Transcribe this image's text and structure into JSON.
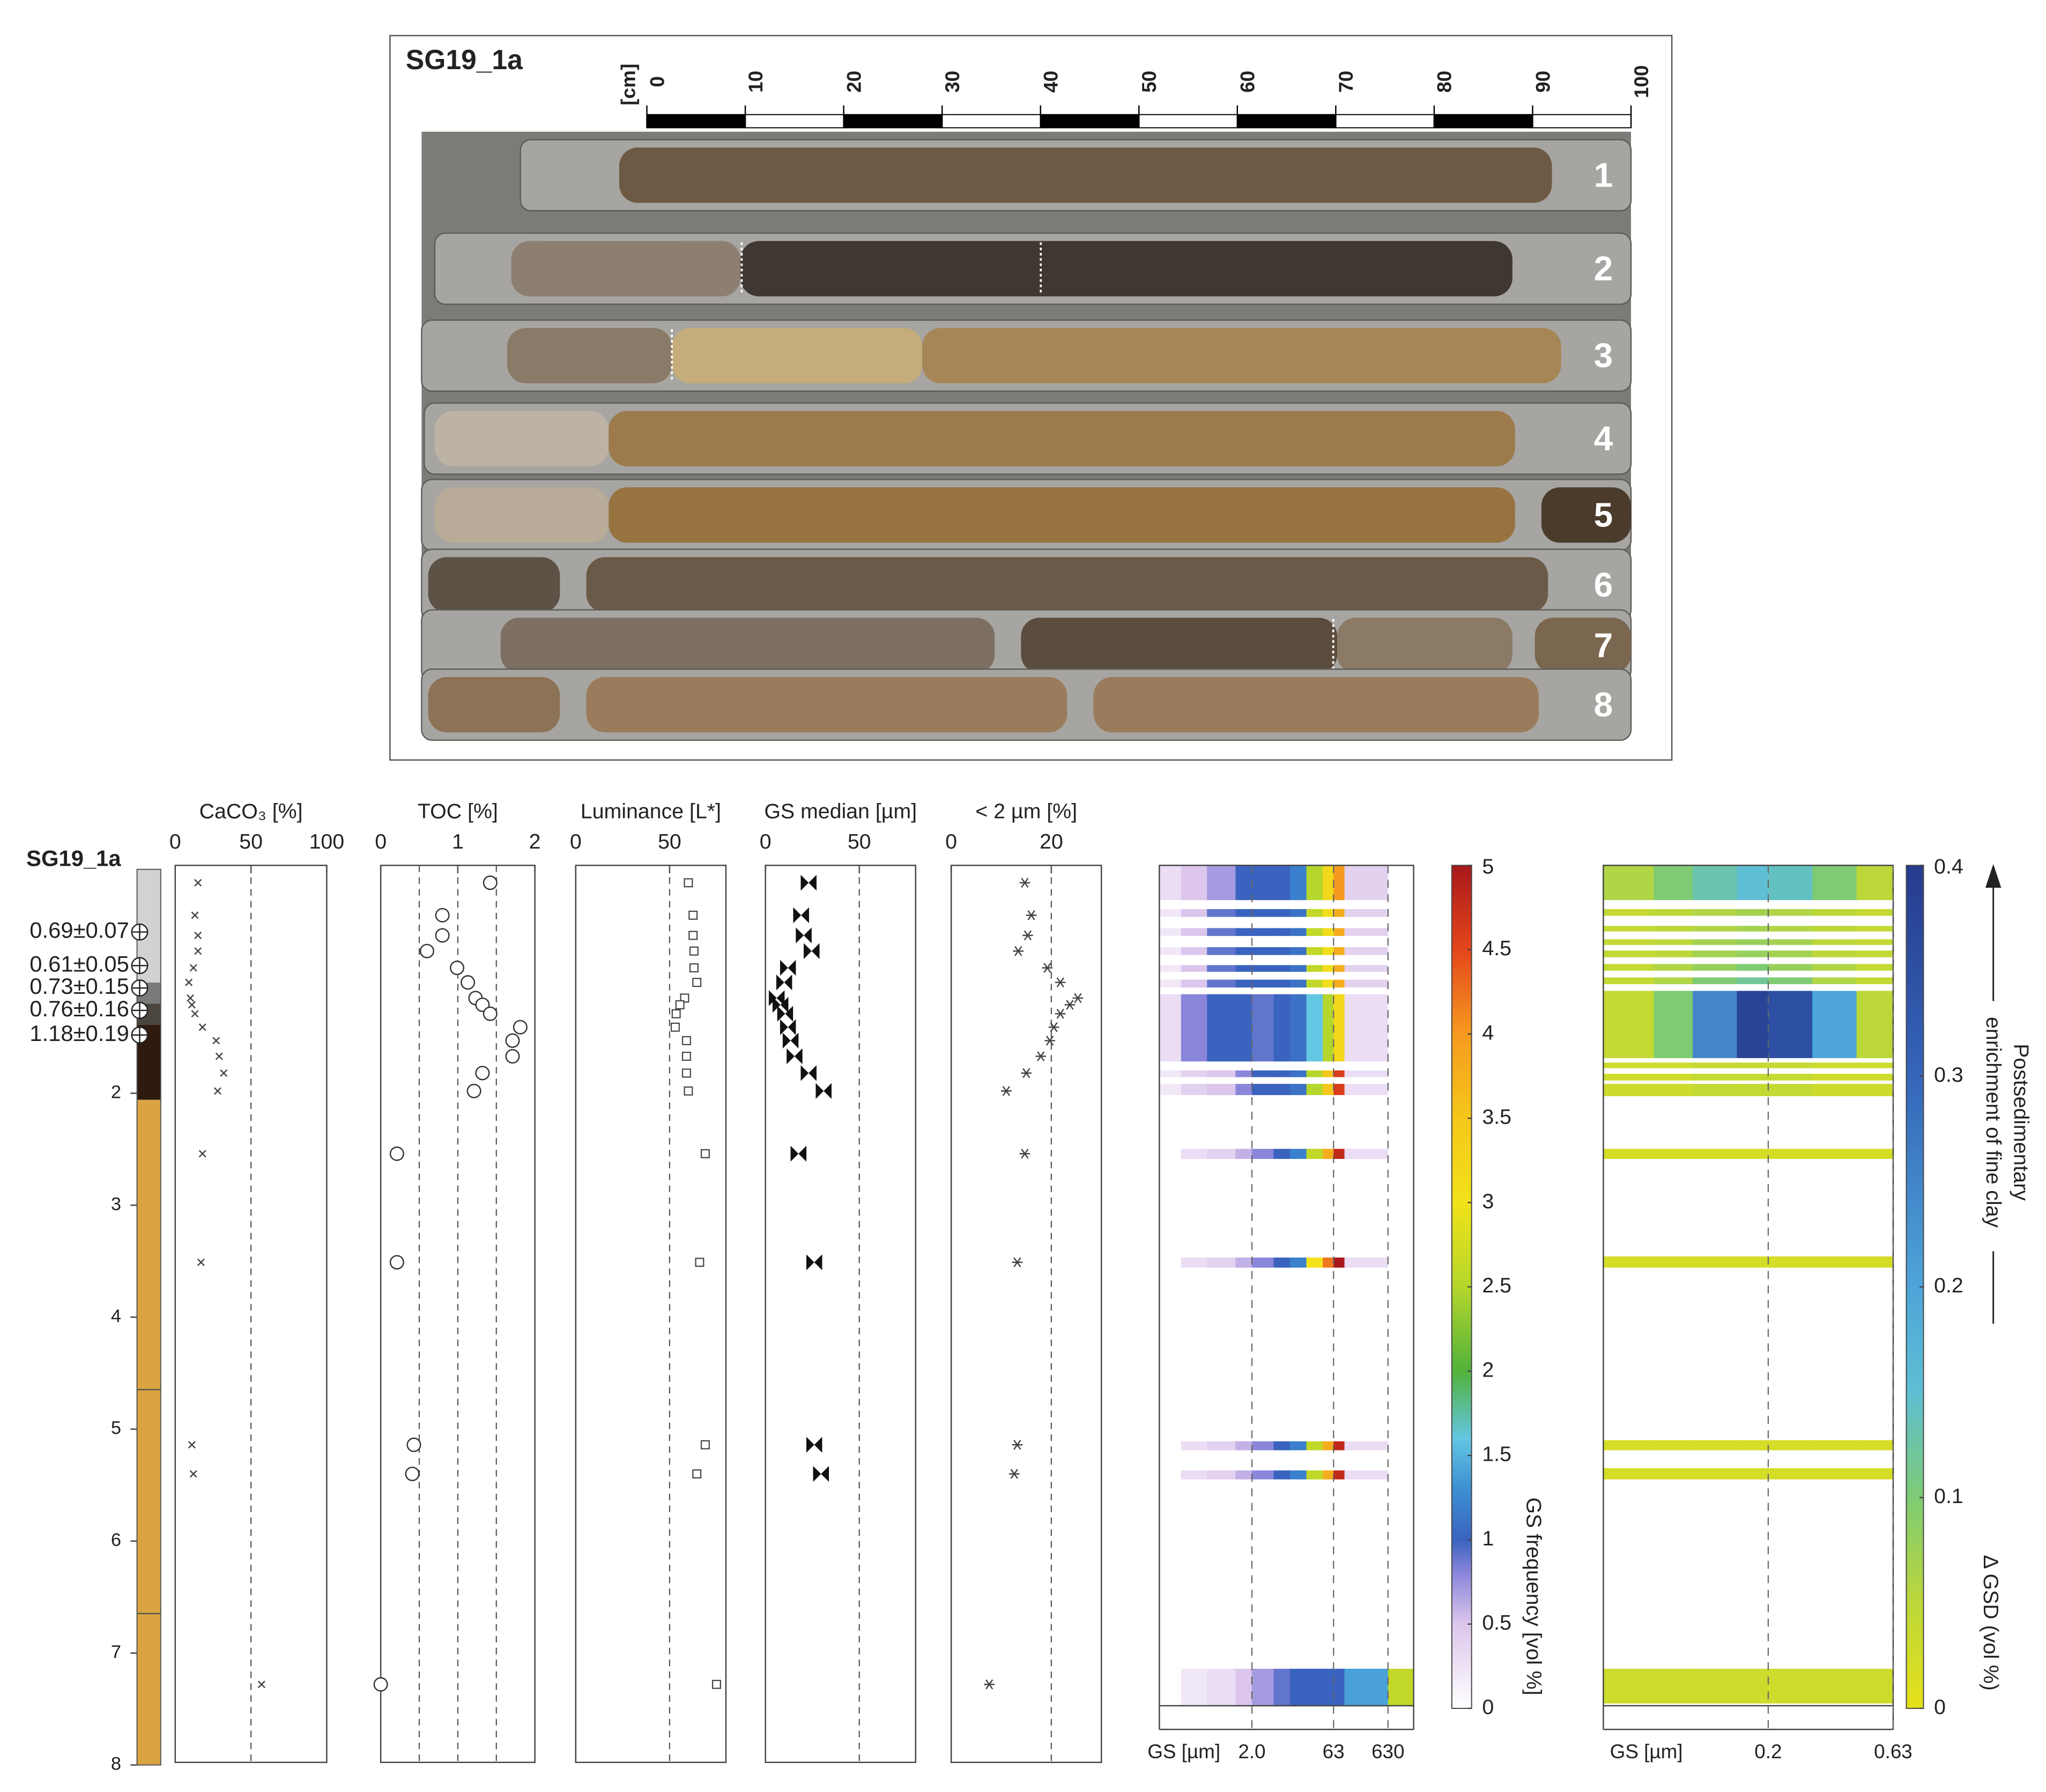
{
  "photo": {
    "title": "SG19_1a",
    "scale_unit": "[cm]",
    "scale_lim": [
      0,
      100
    ],
    "scale_ticks": [
      0,
      10,
      20,
      30,
      40,
      50,
      60,
      70,
      80,
      90,
      100
    ],
    "cores": [
      "1",
      "2",
      "3",
      "4",
      "5",
      "6",
      "7",
      "8"
    ]
  },
  "chart_data": [
    {
      "type": "log",
      "title": "SG19_1a",
      "ylim": [
        8,
        0
      ],
      "yticks": [
        2,
        3,
        4,
        5,
        6,
        7,
        8
      ],
      "ages": [
        "0.69±0.07",
        "0.61±0.05",
        "0.73±0.15",
        "0.76±0.16",
        "1.18±0.19"
      ],
      "age_depths": [
        0.56,
        0.86,
        1.06,
        1.26,
        1.48
      ]
    },
    {
      "type": "scatter",
      "xlabel": "CaCO₃ [%]",
      "marker": "cross",
      "xlim": [
        0,
        100
      ],
      "xticks": [
        0,
        50,
        100
      ],
      "guides": [
        50
      ],
      "ylim": [
        8,
        0
      ],
      "y": [
        0.12,
        0.41,
        0.59,
        0.73,
        0.88,
        1.01,
        1.15,
        1.21,
        1.29,
        1.41,
        1.53,
        1.67,
        1.82,
        1.98,
        2.54,
        3.51,
        5.14,
        5.4,
        7.28
      ],
      "x": [
        15,
        13,
        15,
        15,
        12,
        9,
        10,
        11,
        13,
        18,
        27,
        29,
        32,
        28,
        18,
        17,
        11,
        12,
        57
      ]
    },
    {
      "type": "scatter",
      "xlabel": "TOC [%]",
      "marker": "circle",
      "xlim": [
        0,
        2
      ],
      "xticks": [
        0,
        1,
        2
      ],
      "guides": [
        0.5,
        1,
        1.5
      ],
      "ylim": [
        8,
        0
      ],
      "y": [
        0.12,
        0.41,
        0.59,
        0.73,
        0.88,
        1.01,
        1.15,
        1.21,
        1.29,
        1.41,
        1.53,
        1.67,
        1.82,
        1.98,
        2.54,
        3.51,
        5.14,
        5.4,
        7.28
      ],
      "x": [
        1.42,
        0.8,
        0.8,
        0.6,
        0.99,
        1.13,
        1.23,
        1.32,
        1.42,
        1.81,
        1.71,
        1.71,
        1.32,
        1.21,
        0.21,
        0.21,
        0.43,
        0.41,
        0
      ]
    },
    {
      "type": "scatter",
      "xlabel": "Luminance [L*]",
      "marker": "square",
      "xlim": [
        0,
        80
      ],
      "xticks": [
        0,
        50
      ],
      "guides": [
        50
      ],
      "ylim": [
        8,
        0
      ],
      "y": [
        0.12,
        0.41,
        0.59,
        0.73,
        0.88,
        1.01,
        1.15,
        1.21,
        1.29,
        1.41,
        1.53,
        1.67,
        1.82,
        1.98,
        2.54,
        3.51,
        5.14,
        5.4,
        7.28
      ],
      "x": [
        60,
        62.5,
        62.5,
        63,
        63,
        64.5,
        58,
        55.5,
        53.5,
        53,
        59,
        59,
        59,
        60,
        69,
        66,
        69,
        64.5,
        75
      ]
    },
    {
      "type": "scatter",
      "xlabel": "GS median [µm]",
      "marker": "bowtie",
      "xlim": [
        0,
        80
      ],
      "xticks": [
        0,
        50
      ],
      "guides": [
        50
      ],
      "ylim": [
        8,
        0
      ],
      "y": [
        0.12,
        0.41,
        0.59,
        0.73,
        0.88,
        1.01,
        1.15,
        1.21,
        1.29,
        1.41,
        1.53,
        1.67,
        1.82,
        1.98,
        2.54,
        3.51,
        5.14,
        5.4
      ],
      "x": [
        23,
        19,
        20.4,
        24.6,
        12,
        10,
        6,
        8,
        10.5,
        12,
        13.4,
        15.5,
        23,
        31,
        17.6,
        26,
        26,
        29.6
      ]
    },
    {
      "type": "scatter",
      "xlabel": "< 2 µm [%]",
      "marker": "asterisk",
      "xlim": [
        0,
        30
      ],
      "xticks": [
        0,
        20
      ],
      "guides": [
        20
      ],
      "ylim": [
        8,
        0
      ],
      "y": [
        0.12,
        0.41,
        0.59,
        0.73,
        0.88,
        1.01,
        1.15,
        1.21,
        1.29,
        1.41,
        1.53,
        1.67,
        1.82,
        1.98,
        2.54,
        3.51,
        5.14,
        5.4,
        7.28
      ],
      "x": [
        14.7,
        16,
        15.3,
        13.4,
        19.2,
        21.8,
        25.3,
        23.7,
        21.8,
        20.5,
        19.7,
        17.9,
        15,
        11,
        14.7,
        13.2,
        13.2,
        12.6,
        7.6
      ]
    },
    {
      "type": "heatmap",
      "xlabel": "GS [µm]",
      "xlog": true,
      "xlim": [
        0.04,
        1860
      ],
      "xticks": [
        {
          "value": 2,
          "label": "2.0"
        },
        63,
        630
      ],
      "grid": true,
      "ylim": [
        7.5,
        0
      ],
      "bins": [
        0.04,
        0.1,
        0.3,
        1,
        2,
        5,
        10,
        20,
        40,
        63,
        100,
        630,
        1860
      ],
      "rows": [
        {
          "depth": [
            0,
            0.31
          ],
          "values": [
            0.3,
            0.5,
            0.7,
            1.0,
            1.0,
            1.0,
            1.2,
            2.5,
            3.2,
            4.0,
            0.4,
            0
          ]
        },
        {
          "depth": [
            0.39,
            0.46
          ],
          "values": [
            0.2,
            0.5,
            0.9,
            1.0,
            1.0,
            1.0,
            1.1,
            2.6,
            3.1,
            3.8,
            0.4,
            0
          ]
        },
        {
          "depth": [
            0.56,
            0.63
          ],
          "values": [
            0.2,
            0.5,
            0.9,
            1.0,
            1.0,
            1.0,
            1.1,
            2.6,
            3.1,
            3.8,
            0.4,
            0
          ]
        },
        {
          "depth": [
            0.73,
            0.8
          ],
          "values": [
            0.2,
            0.5,
            0.9,
            1.0,
            1.0,
            1.0,
            1.1,
            2.6,
            3.1,
            3.8,
            0.4,
            0
          ]
        },
        {
          "depth": [
            0.89,
            0.95
          ],
          "values": [
            0.2,
            0.5,
            0.9,
            1.0,
            1.0,
            1.0,
            1.1,
            2.6,
            3.1,
            3.8,
            0.4,
            0
          ]
        },
        {
          "depth": [
            1.02,
            1.09
          ],
          "values": [
            0.2,
            0.5,
            0.9,
            1.0,
            1.0,
            1.0,
            1.1,
            2.6,
            3.1,
            3.8,
            0.4,
            0
          ]
        },
        {
          "depth": [
            1.15,
            1.75
          ],
          "values": [
            0.3,
            0.8,
            1.0,
            1.0,
            0.9,
            1.0,
            1.1,
            1.6,
            2.5,
            3.2,
            0.3,
            0
          ]
        },
        {
          "depth": [
            1.83,
            1.89
          ],
          "values": [
            0.2,
            0.4,
            0.5,
            0.8,
            1.0,
            1.0,
            1.1,
            2.5,
            3.5,
            4.6,
            0.3,
            0
          ]
        },
        {
          "depth": [
            1.95,
            2.05
          ],
          "values": [
            0.2,
            0.4,
            0.5,
            0.8,
            1.0,
            1.0,
            1.1,
            2.5,
            3.5,
            4.6,
            0.3,
            0
          ]
        },
        {
          "depth": [
            2.53,
            2.62
          ],
          "values": [
            0,
            0.3,
            0.4,
            0.6,
            0.8,
            1.0,
            1.2,
            2.6,
            3.8,
            4.8,
            0.3,
            0
          ]
        },
        {
          "depth": [
            3.5,
            3.59
          ],
          "values": [
            0,
            0.3,
            0.4,
            0.6,
            0.8,
            1.0,
            1.2,
            3.0,
            4.2,
            5.0,
            0.3,
            0
          ]
        },
        {
          "depth": [
            5.14,
            5.22
          ],
          "values": [
            0,
            0.3,
            0.4,
            0.6,
            0.8,
            1.0,
            1.2,
            2.6,
            3.8,
            4.8,
            0.3,
            0
          ]
        },
        {
          "depth": [
            5.4,
            5.48
          ],
          "values": [
            0,
            0.3,
            0.4,
            0.6,
            0.8,
            1.0,
            1.2,
            2.6,
            3.8,
            4.8,
            0.3,
            0
          ]
        },
        {
          "depth": [
            7.17,
            7.5
          ],
          "values": [
            0,
            0.2,
            0.3,
            0.5,
            0.7,
            0.9,
            1.0,
            1.0,
            1.0,
            1.0,
            1.4,
            2.6
          ]
        }
      ],
      "colorbar": {
        "label": "GS frequency [vol %]",
        "lim": [
          0,
          5
        ],
        "ticks": [
          0,
          0.5,
          1,
          1.5,
          2,
          2.5,
          3,
          3.5,
          4,
          4.5,
          5
        ],
        "scale": [
          {
            "value": 0,
            "color": "#ffffff"
          },
          {
            "value": 0.5,
            "color": "#dcc6ec"
          },
          {
            "value": 0.8,
            "color": "#8a86da"
          },
          {
            "value": 1,
            "color": "#3a63bf"
          },
          {
            "value": 1.3,
            "color": "#3c8fd2"
          },
          {
            "value": 1.6,
            "color": "#63c6e2"
          },
          {
            "value": 2,
            "color": "#52b23a"
          },
          {
            "value": 2.5,
            "color": "#b5d62c"
          },
          {
            "value": 3,
            "color": "#f2e21a"
          },
          {
            "value": 3.5,
            "color": "#f5c71a"
          },
          {
            "value": 4,
            "color": "#f59a1f"
          },
          {
            "value": 4.5,
            "color": "#e4461c"
          },
          {
            "value": 5,
            "color": "#a8181a"
          }
        ]
      }
    },
    {
      "type": "heatmap",
      "xlabel": "GS [µm]",
      "xlog": true,
      "xlim": [
        0.044,
        0.63
      ],
      "xticks": [
        0.2,
        0.63
      ],
      "grid": true,
      "ylim": [
        7.5,
        0
      ],
      "bins": [
        0.044,
        0.07,
        0.1,
        0.15,
        0.2,
        0.3,
        0.45,
        0.63
      ],
      "rows": [
        {
          "depth": [
            0,
            0.31
          ],
          "values": [
            0.06,
            0.1,
            0.13,
            0.15,
            0.14,
            0.1,
            0.05
          ]
        },
        {
          "depth": [
            0.39,
            0.45
          ],
          "values": [
            0.04,
            0.05,
            0.06,
            0.07,
            0.06,
            0.05,
            0.04
          ]
        },
        {
          "depth": [
            0.54,
            0.59
          ],
          "values": [
            0.04,
            0.05,
            0.06,
            0.07,
            0.06,
            0.05,
            0.04
          ]
        },
        {
          "depth": [
            0.66,
            0.71
          ],
          "values": [
            0.04,
            0.05,
            0.07,
            0.08,
            0.07,
            0.05,
            0.04
          ]
        },
        {
          "depth": [
            0.76,
            0.82
          ],
          "values": [
            0.04,
            0.05,
            0.07,
            0.08,
            0.07,
            0.05,
            0.04
          ]
        },
        {
          "depth": [
            0.88,
            0.94
          ],
          "values": [
            0.04,
            0.06,
            0.08,
            0.1,
            0.08,
            0.06,
            0.04
          ]
        },
        {
          "depth": [
            1.0,
            1.06
          ],
          "values": [
            0.04,
            0.06,
            0.1,
            0.12,
            0.1,
            0.06,
            0.04
          ]
        },
        {
          "depth": [
            1.12,
            1.72
          ],
          "values": [
            0.04,
            0.1,
            0.25,
            0.38,
            0.35,
            0.2,
            0.05
          ]
        },
        {
          "depth": [
            1.76,
            1.81
          ],
          "values": [
            0.03,
            0.03,
            0.04,
            0.04,
            0.04,
            0.03,
            0.03
          ]
        },
        {
          "depth": [
            1.86,
            1.92
          ],
          "values": [
            0.03,
            0.03,
            0.04,
            0.04,
            0.04,
            0.03,
            0.03
          ]
        },
        {
          "depth": [
            1.95,
            2.06
          ],
          "values": [
            0.03,
            0.03,
            0.04,
            0.04,
            0.04,
            0.03,
            0.03
          ]
        },
        {
          "depth": [
            2.53,
            2.62
          ],
          "values": [
            0.02,
            0.02,
            0.02,
            0.02,
            0.02,
            0.02,
            0.02
          ]
        },
        {
          "depth": [
            3.49,
            3.59
          ],
          "values": [
            0.02,
            0.02,
            0.02,
            0.02,
            0.02,
            0.02,
            0.02
          ]
        },
        {
          "depth": [
            5.13,
            5.22
          ],
          "values": [
            0.02,
            0.02,
            0.02,
            0.02,
            0.02,
            0.02,
            0.02
          ]
        },
        {
          "depth": [
            5.38,
            5.48
          ],
          "values": [
            0.02,
            0.02,
            0.02,
            0.02,
            0.02,
            0.02,
            0.02
          ]
        },
        {
          "depth": [
            7.17,
            7.48
          ],
          "values": [
            0.03,
            0.03,
            0.03,
            0.03,
            0.03,
            0.03,
            0.03
          ]
        }
      ],
      "colorbar": {
        "label": "Δ GSD (vol %)",
        "lim": [
          0,
          0.4
        ],
        "ticks": [
          0,
          0.1,
          0.2,
          0.3,
          0.4
        ],
        "scale": [
          {
            "value": 0,
            "color": "#e6e11a"
          },
          {
            "value": 0.05,
            "color": "#bcd73a"
          },
          {
            "value": 0.1,
            "color": "#7ecb74"
          },
          {
            "value": 0.15,
            "color": "#5ebfd4"
          },
          {
            "value": 0.2,
            "color": "#4ea5d8"
          },
          {
            "value": 0.3,
            "color": "#3565b9"
          },
          {
            "value": 0.4,
            "color": "#263b8e"
          }
        ]
      },
      "annotation": [
        "Postsedimentary",
        "enrichment of fine clay"
      ]
    }
  ]
}
